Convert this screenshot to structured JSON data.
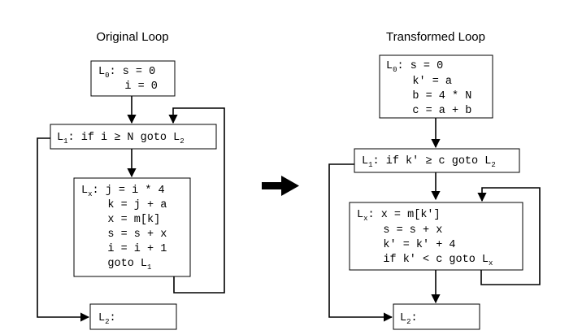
{
  "titles": {
    "original": "Original Loop",
    "transformed": "Transformed Loop"
  },
  "original": {
    "l0": [
      {
        "label": "L",
        "sub": "0",
        "text": ": s = 0"
      },
      {
        "text": "    i = 0"
      }
    ],
    "l1": {
      "label": "L",
      "sub": "1",
      "text": ": if i ≥ N goto L",
      "target_sub": "2"
    },
    "lx": [
      {
        "label": "L",
        "sub": "x",
        "text": ": j = i * 4"
      },
      {
        "text": "    k = j + a"
      },
      {
        "text": "    x = m[k]"
      },
      {
        "text": "    s = s + x"
      },
      {
        "text": "    i = i + 1"
      },
      {
        "text": "    goto L",
        "target_sub": "1"
      }
    ],
    "l2": {
      "label": "L",
      "sub": "2",
      "text": ":"
    }
  },
  "transformed": {
    "l0": [
      {
        "label": "L",
        "sub": "0",
        "text": ": s = 0"
      },
      {
        "text": "    k' = a"
      },
      {
        "text": "    b = 4 * N"
      },
      {
        "text": "    c = a + b"
      }
    ],
    "l1": {
      "label": "L",
      "sub": "1",
      "text": ": if k' ≥ c goto L",
      "target_sub": "2"
    },
    "lx": [
      {
        "label": "L",
        "sub": "x",
        "text": ": x = m[k']"
      },
      {
        "text": "    s = s + x"
      },
      {
        "text": "    k' = k' + 4"
      },
      {
        "text": "    if k' < c goto L",
        "target_sub": "x"
      }
    ],
    "l2": {
      "label": "L",
      "sub": "2",
      "text": ":"
    }
  },
  "colors": {
    "stroke": "#000000",
    "background": "#ffffff"
  }
}
